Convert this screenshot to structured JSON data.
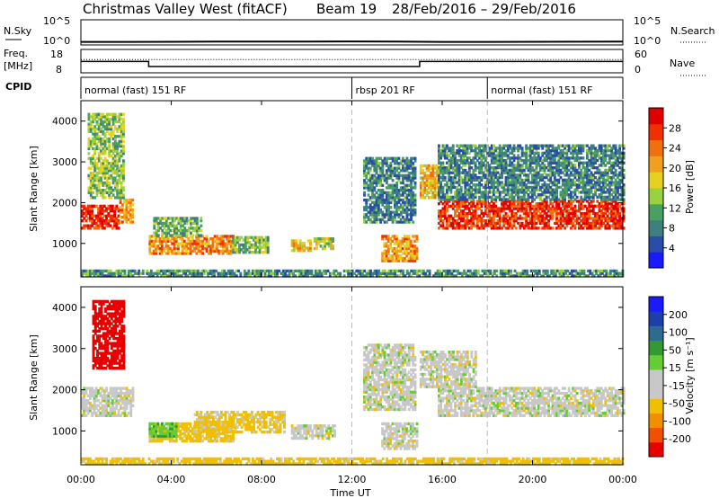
{
  "header": {
    "station": "Christmas Valley West (fitACF)",
    "beam": "Beam 19",
    "date_range": "28/Feb/2016 – 29/Feb/2016"
  },
  "left_labels": {
    "nsky": "N.Sky",
    "freq": "Freq.",
    "freq_unit": "[MHz]",
    "cpid": "CPID"
  },
  "right_labels": {
    "nsearch": "N.Search",
    "nave": "Nave"
  },
  "colors": {
    "power_scale": [
      "#1a1aff",
      "#2a4ea8",
      "#3f7f7f",
      "#4aa060",
      "#9bd040",
      "#e8d020",
      "#f0a020",
      "#f07010",
      "#f03000",
      "#e00000"
    ],
    "velocity_scale": [
      "#e80000",
      "#f05000",
      "#f09000",
      "#f0c000",
      "#c8c8c8",
      "#c8c8c8",
      "#66cc33",
      "#339933",
      "#2e6b8f",
      "#1f3fa8",
      "#1a1aff"
    ]
  },
  "chart_data": [
    {
      "type": "line",
      "panel": "noise",
      "ylabel_left": "N.Sky",
      "ylabel_right": "N.Search",
      "yticks_left": [
        "10^5",
        "10^0"
      ],
      "yticks_right": [
        "10^5",
        "10^0"
      ],
      "x_hours": [
        0,
        2,
        4,
        6,
        8,
        10,
        12,
        14,
        16,
        18,
        20,
        22,
        24
      ],
      "n_sky_log10": [
        0.3,
        0.3,
        0.32,
        0.35,
        0.36,
        0.38,
        0.4,
        0.35,
        0.3,
        0.3,
        0.32,
        0.33,
        0.35
      ]
    },
    {
      "type": "line",
      "panel": "frequency",
      "ylabel_left": "Freq. [MHz]",
      "ylabel_right": "Nave",
      "yticks_left": [
        "18",
        "8"
      ],
      "yticks_right": [
        "60",
        "0"
      ],
      "freq_steps": [
        {
          "start": 0,
          "end": 3,
          "value": 13.3
        },
        {
          "start": 3,
          "end": 15,
          "value": 10.5
        },
        {
          "start": 15,
          "end": 24,
          "value": 13.3
        }
      ],
      "nave_steps": [
        {
          "start": 0,
          "end": 3,
          "value": 38
        },
        {
          "start": 3,
          "end": 24,
          "value": 38
        }
      ]
    },
    {
      "type": "table",
      "panel": "cpid",
      "segments": [
        {
          "start": 0,
          "end": 12,
          "label": "normal (fast) 151 RF"
        },
        {
          "start": 12,
          "end": 18,
          "label": "rbsp 201 RF"
        },
        {
          "start": 18,
          "end": 24,
          "label": "normal (fast) 151 RF"
        }
      ]
    },
    {
      "type": "heatmap",
      "panel": "power",
      "ylabel": "Slant Range [km]",
      "yticks": [
        1000,
        2000,
        3000,
        4000
      ],
      "ylim": [
        180,
        4500
      ],
      "xlim": [
        0,
        24
      ],
      "colorbar_label": "Power [dB]",
      "colorbar_ticks": [
        "4",
        "8",
        "12",
        "16",
        "20",
        "24",
        "28"
      ],
      "colorbar_range": [
        0,
        30
      ],
      "echo_regions": [
        {
          "t0": 0.0,
          "t1": 1.7,
          "r0": 1350,
          "r1": 1900,
          "level": 27
        },
        {
          "t0": 1.7,
          "t1": 2.3,
          "r0": 1500,
          "r1": 2050,
          "level": 20
        },
        {
          "t0": 0.3,
          "t1": 1.9,
          "r0": 2100,
          "r1": 4150,
          "level": 13
        },
        {
          "t0": 3.0,
          "t1": 6.7,
          "r0": 730,
          "r1": 1170,
          "level": 21
        },
        {
          "t0": 3.2,
          "t1": 5.3,
          "r0": 1170,
          "r1": 1650,
          "level": 11
        },
        {
          "t0": 6.7,
          "t1": 8.3,
          "r0": 760,
          "r1": 1150,
          "level": 12
        },
        {
          "t0": 9.3,
          "t1": 10.2,
          "r0": 800,
          "r1": 1100,
          "level": 18
        },
        {
          "t0": 10.3,
          "t1": 11.2,
          "r0": 850,
          "r1": 1150,
          "level": 15
        },
        {
          "t0": 13.3,
          "t1": 14.9,
          "r0": 550,
          "r1": 1200,
          "level": 20
        },
        {
          "t0": 12.5,
          "t1": 14.8,
          "r0": 1500,
          "r1": 3100,
          "level": 8
        },
        {
          "t0": 15.0,
          "t1": 15.8,
          "r0": 2100,
          "r1": 2900,
          "level": 18
        },
        {
          "t0": 15.8,
          "t1": 24.0,
          "r0": 1350,
          "r1": 2050,
          "level": 26
        },
        {
          "t0": 15.8,
          "t1": 24.0,
          "r0": 2050,
          "r1": 3400,
          "level": 8
        },
        {
          "t0": 0.0,
          "t1": 24.0,
          "r0": 180,
          "r1": 330,
          "level": 9
        }
      ]
    },
    {
      "type": "heatmap",
      "panel": "velocity",
      "ylabel": "Slant Range [km]",
      "yticks": [
        1000,
        2000,
        3000,
        4000
      ],
      "ylim": [
        180,
        4500
      ],
      "xlim": [
        0,
        24
      ],
      "xticks": [
        "00:00",
        "04:00",
        "08:00",
        "12:00",
        "16:00",
        "20:00",
        "00:00"
      ],
      "xtick_hours": [
        0,
        4,
        8,
        12,
        16,
        20,
        24
      ],
      "xlabel": "Time UT",
      "colorbar_label": "Velocity [m s⁻¹]",
      "colorbar_ticks": [
        "-200",
        "-100",
        "-50",
        "-15",
        "15",
        "50",
        "100",
        "200"
      ],
      "echo_regions": [
        {
          "t0": 0.0,
          "t1": 2.3,
          "r0": 1350,
          "r1": 2050,
          "velocity": 0
        },
        {
          "t0": 0.5,
          "t1": 1.9,
          "r0": 2500,
          "r1": 4150,
          "velocity": -120
        },
        {
          "t0": 3.0,
          "t1": 6.7,
          "r0": 730,
          "r1": 1170,
          "velocity": -30
        },
        {
          "t0": 3.0,
          "t1": 4.2,
          "r0": 850,
          "r1": 1200,
          "velocity": 40
        },
        {
          "t0": 5.0,
          "t1": 9.0,
          "r0": 950,
          "r1": 1450,
          "velocity": -25
        },
        {
          "t0": 9.3,
          "t1": 11.2,
          "r0": 800,
          "r1": 1150,
          "velocity": 0
        },
        {
          "t0": 13.3,
          "t1": 14.9,
          "r0": 550,
          "r1": 1200,
          "velocity": 0
        },
        {
          "t0": 12.5,
          "t1": 14.8,
          "r0": 1500,
          "r1": 3100,
          "velocity": 0
        },
        {
          "t0": 15.8,
          "t1": 24.0,
          "r0": 1350,
          "r1": 2050,
          "velocity": 0
        },
        {
          "t0": 15.0,
          "t1": 17.5,
          "r0": 2050,
          "r1": 2900,
          "velocity": 0
        },
        {
          "t0": 0.0,
          "t1": 24.0,
          "r0": 180,
          "r1": 330,
          "velocity": -30
        }
      ]
    }
  ]
}
